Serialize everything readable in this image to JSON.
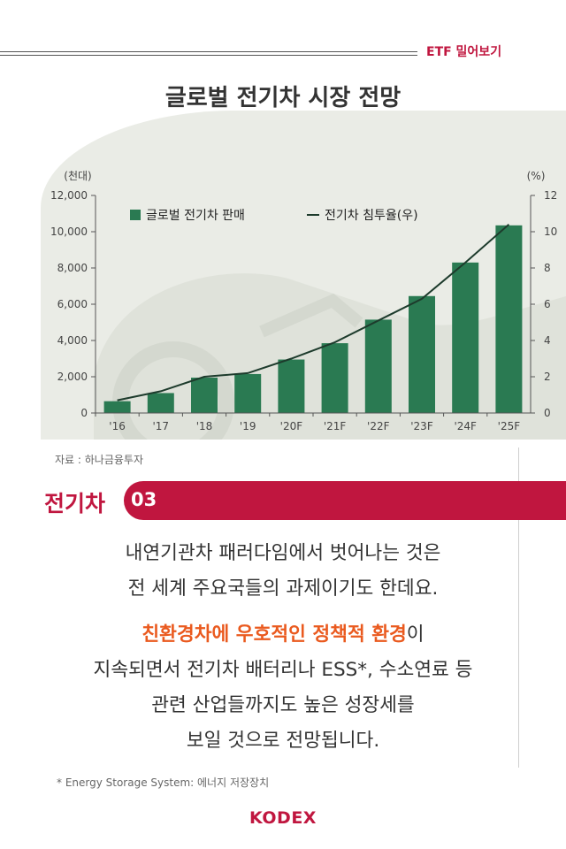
{
  "header": {
    "tag": "ETF 밀어보기"
  },
  "title": "글로벌 전기차 시장 전망",
  "chart_data": {
    "type": "bar",
    "categories": [
      "'16",
      "'17",
      "'18",
      "'19",
      "'20F",
      "'21F",
      "'22F",
      "'23F",
      "'24F",
      "'25F"
    ],
    "series": [
      {
        "name": "글로벌 전기차 판매",
        "kind": "bar",
        "axis": "left",
        "values": [
          650,
          1100,
          1950,
          2150,
          2950,
          3850,
          5150,
          6450,
          8300,
          10350
        ]
      },
      {
        "name": "전기차 침투율(우)",
        "kind": "line",
        "axis": "right",
        "values": [
          0.7,
          1.2,
          2.0,
          2.2,
          3.0,
          3.9,
          5.1,
          6.3,
          8.3,
          10.4
        ]
      }
    ],
    "ylabel_left": "(천대)",
    "ylabel_right": "(%)",
    "ylim_left": [
      0,
      12000
    ],
    "ylim_right": [
      0,
      12
    ],
    "yticks_left": [
      "0",
      "2,000",
      "4,000",
      "6,000",
      "8,000",
      "10,000",
      "12,000"
    ],
    "yticks_right": [
      "0",
      "2",
      "4",
      "6",
      "8",
      "10",
      "12"
    ],
    "legend_position": "top-left",
    "colors": {
      "bar": "#2a7a52",
      "line": "#1d3b2c"
    }
  },
  "source": "자료 : 하나금융투자",
  "section": {
    "word": "전기차",
    "number": "03"
  },
  "body": {
    "line1": "내연기관차 패러다임에서 벗어나는 것은",
    "line2": "전 세계 주요국들의 과제이기도 한데요.",
    "highlight": "친환경차에 우호적인 정책적 환경",
    "line3_tail": "이",
    "line4": "지속되면서 전기차 배터리나 ESS*, 수소연료 등",
    "line5": "관련 산업들까지도 높은 성장세를",
    "line6": "보일 것으로 전망됩니다."
  },
  "footnote": "* Energy Storage System: 에너지 저장장치",
  "logo": "KODEX"
}
